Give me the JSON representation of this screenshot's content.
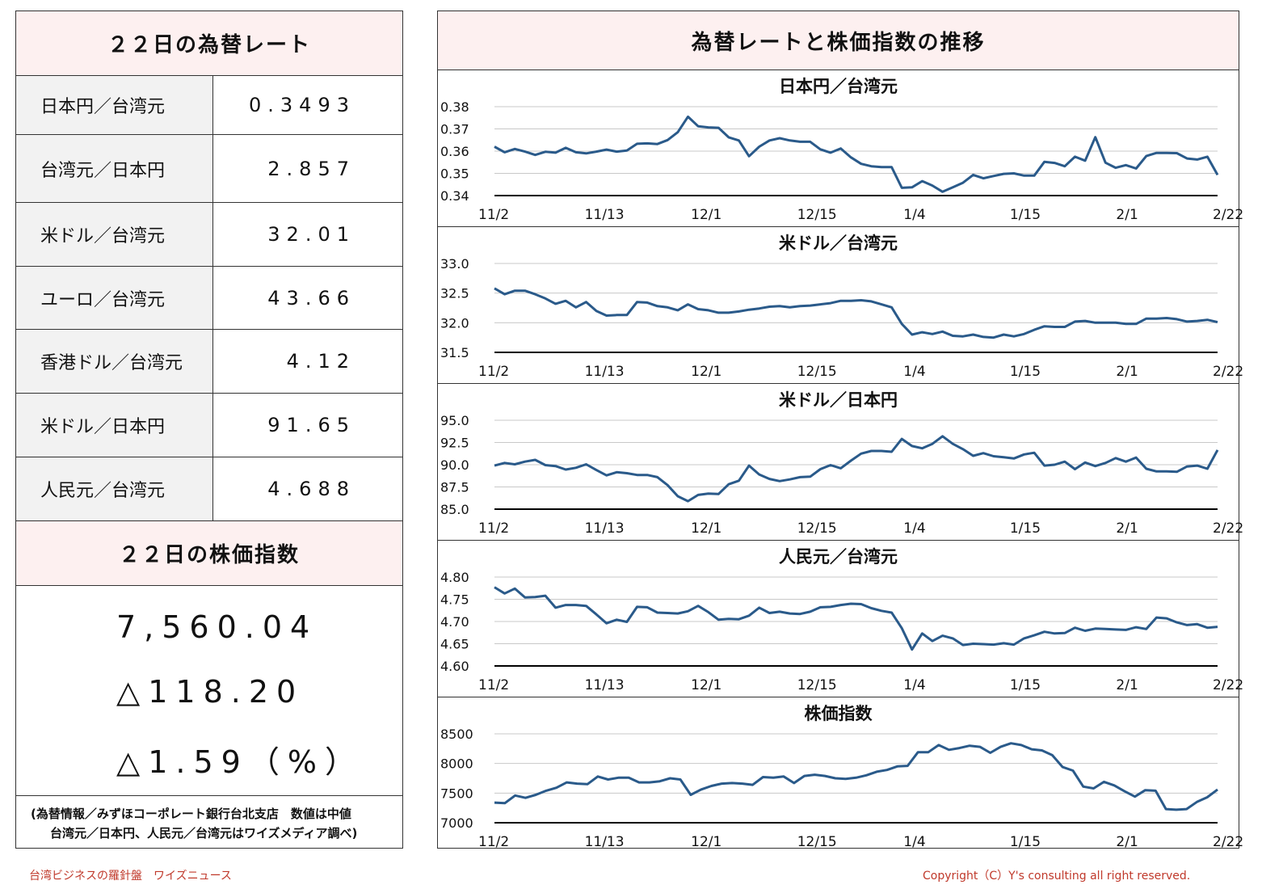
{
  "rates_panel": {
    "title": "２２日の為替レート",
    "rows": [
      {
        "label": "日本円／台湾元",
        "value": "0.3493"
      },
      {
        "label": "台湾元／日本円",
        "value": "2.857"
      },
      {
        "label": "米ドル／台湾元",
        "value": "32.01"
      },
      {
        "label": "ユーロ／台湾元",
        "value": "43.66"
      },
      {
        "label": "香港ドル／台湾元",
        "value": "4.12"
      },
      {
        "label": "米ドル／日本円",
        "value": "91.65"
      },
      {
        "label": "人民元／台湾元",
        "value": "4.688"
      }
    ]
  },
  "stock_panel": {
    "title": "２２日の株価指数",
    "index": "7,560.04",
    "change": "△118.20",
    "change_pct": "△1.59（%）"
  },
  "note": {
    "line1": "(為替情報／みずほコーポレート銀行台北支店　数値は中値",
    "line2": "台湾元／日本円、人民元／台湾元はワイズメディア調べ)"
  },
  "chart_section_title": "為替レートと株価指数の推移",
  "footer": {
    "left": "台湾ビジネスの羅針盤　ワイズニュース",
    "right": "Copyright（C）Y's consulting all right reserved."
  },
  "colors": {
    "line": "#2a5a8a",
    "header_bg": "#fdf0f0",
    "label_bg": "#f2f2f2",
    "footer": "#c0392b"
  },
  "chart_data": [
    {
      "type": "line",
      "title": "日本円／台湾元",
      "x_ticks": [
        "11/2",
        "11/13",
        "12/1",
        "12/15",
        "1/4",
        "1/15",
        "2/1",
        "2/22"
      ],
      "y_ticks": [
        "0.38",
        "0.37",
        "0.36",
        "0.35",
        "0.34"
      ],
      "ylim": [
        0.34,
        0.38
      ],
      "values": [
        0.362,
        0.3595,
        0.361,
        0.3598,
        0.3583,
        0.3597,
        0.3593,
        0.3615,
        0.3595,
        0.359,
        0.3598,
        0.3607,
        0.3598,
        0.3603,
        0.3633,
        0.3635,
        0.3632,
        0.365,
        0.3685,
        0.3755,
        0.3712,
        0.3707,
        0.3705,
        0.3662,
        0.3648,
        0.3577,
        0.362,
        0.3648,
        0.3658,
        0.3648,
        0.3642,
        0.3642,
        0.3608,
        0.3593,
        0.3612,
        0.3572,
        0.3543,
        0.3532,
        0.3528,
        0.3528,
        0.3435,
        0.3437,
        0.3465,
        0.3445,
        0.3417,
        0.3437,
        0.3458,
        0.3493,
        0.3478,
        0.3488,
        0.3498,
        0.35,
        0.349,
        0.349,
        0.3552,
        0.3547,
        0.3532,
        0.3575,
        0.3557,
        0.3663,
        0.3548,
        0.3525,
        0.3537,
        0.3522,
        0.3578,
        0.3592,
        0.3592,
        0.3591,
        0.3567,
        0.3562,
        0.3575,
        0.3493
      ]
    },
    {
      "type": "line",
      "title": "米ドル／台湾元",
      "x_ticks": [
        "11/2",
        "11/13",
        "12/1",
        "12/15",
        "1/4",
        "1/15",
        "2/1",
        "2/22"
      ],
      "y_ticks": [
        "33.0",
        "32.5",
        "32.0",
        "31.5"
      ],
      "ylim": [
        31.5,
        33.0
      ],
      "values": [
        32.58,
        32.48,
        32.54,
        32.54,
        32.48,
        32.41,
        32.32,
        32.37,
        32.26,
        32.35,
        32.2,
        32.12,
        32.13,
        32.13,
        32.35,
        32.34,
        32.28,
        32.26,
        32.21,
        32.31,
        32.23,
        32.21,
        32.17,
        32.17,
        32.19,
        32.22,
        32.24,
        32.27,
        32.28,
        32.26,
        32.28,
        32.29,
        32.31,
        32.33,
        32.37,
        32.37,
        32.38,
        32.36,
        32.31,
        32.26,
        31.98,
        31.8,
        31.84,
        31.81,
        31.85,
        31.78,
        31.77,
        31.8,
        31.76,
        31.75,
        31.8,
        31.77,
        31.81,
        31.88,
        31.94,
        31.93,
        31.93,
        32.02,
        32.03,
        32.0,
        32.0,
        32.0,
        31.98,
        31.98,
        32.07,
        32.07,
        32.08,
        32.06,
        32.02,
        32.03,
        32.05,
        32.01
      ]
    },
    {
      "type": "line",
      "title": "米ドル／日本円",
      "x_ticks": [
        "11/2",
        "11/13",
        "12/1",
        "12/15",
        "1/4",
        "1/15",
        "2/1",
        "2/22"
      ],
      "y_ticks": [
        "95.0",
        "92.5",
        "90.0",
        "87.5",
        "85.0"
      ],
      "ylim": [
        85.0,
        95.0
      ],
      "values": [
        89.9,
        90.2,
        90.05,
        90.35,
        90.55,
        89.95,
        89.85,
        89.45,
        89.65,
        90.05,
        89.4,
        88.8,
        89.15,
        89.05,
        88.85,
        88.85,
        88.6,
        87.7,
        86.45,
        85.9,
        86.6,
        86.75,
        86.7,
        87.8,
        88.2,
        89.9,
        88.9,
        88.4,
        88.15,
        88.35,
        88.6,
        88.65,
        89.5,
        89.95,
        89.6,
        90.45,
        91.25,
        91.55,
        91.55,
        91.45,
        92.9,
        92.1,
        91.85,
        92.35,
        93.2,
        92.35,
        91.75,
        91.0,
        91.3,
        90.95,
        90.85,
        90.7,
        91.15,
        91.35,
        89.9,
        90.0,
        90.35,
        89.5,
        90.25,
        89.85,
        90.2,
        90.75,
        90.35,
        90.8,
        89.55,
        89.25,
        89.25,
        89.2,
        89.8,
        89.9,
        89.55,
        91.65
      ]
    },
    {
      "type": "line",
      "title": "人民元／台湾元",
      "x_ticks": [
        "11/2",
        "11/13",
        "12/1",
        "12/15",
        "1/4",
        "1/15",
        "2/1",
        "2/22"
      ],
      "y_ticks": [
        "4.80",
        "4.75",
        "4.70",
        "4.65",
        "4.60"
      ],
      "ylim": [
        4.6,
        4.8
      ],
      "values": [
        4.777,
        4.763,
        4.774,
        4.754,
        4.755,
        4.758,
        4.731,
        4.737,
        4.737,
        4.735,
        4.716,
        4.696,
        4.704,
        4.699,
        4.733,
        4.732,
        4.72,
        4.719,
        4.718,
        4.723,
        4.735,
        4.721,
        4.704,
        4.706,
        4.705,
        4.713,
        4.731,
        4.719,
        4.722,
        4.718,
        4.717,
        4.722,
        4.732,
        4.733,
        4.737,
        4.74,
        4.739,
        4.73,
        4.724,
        4.72,
        4.685,
        4.637,
        4.673,
        4.656,
        4.668,
        4.662,
        4.647,
        4.65,
        4.649,
        4.648,
        4.651,
        4.648,
        4.662,
        4.669,
        4.677,
        4.673,
        4.674,
        4.686,
        4.679,
        4.684,
        4.683,
        4.682,
        4.681,
        4.687,
        4.683,
        4.709,
        4.707,
        4.698,
        4.692,
        4.694,
        4.686,
        4.688
      ]
    },
    {
      "type": "line",
      "title": "株価指数",
      "x_ticks": [
        "11/2",
        "11/13",
        "12/1",
        "12/15",
        "1/4",
        "1/15",
        "2/1",
        "2/22"
      ],
      "y_ticks": [
        "8500",
        "8000",
        "7500",
        "7000"
      ],
      "ylim": [
        7000,
        8500
      ],
      "values": [
        7340,
        7330,
        7460,
        7420,
        7470,
        7540,
        7590,
        7680,
        7660,
        7650,
        7780,
        7730,
        7760,
        7760,
        7680,
        7680,
        7700,
        7750,
        7730,
        7470,
        7560,
        7620,
        7660,
        7670,
        7660,
        7640,
        7770,
        7760,
        7780,
        7670,
        7790,
        7810,
        7790,
        7750,
        7740,
        7760,
        7800,
        7860,
        7890,
        7950,
        7960,
        8190,
        8190,
        8310,
        8230,
        8260,
        8300,
        8280,
        8180,
        8280,
        8340,
        8310,
        8240,
        8220,
        8140,
        7940,
        7880,
        7610,
        7580,
        7690,
        7630,
        7530,
        7440,
        7550,
        7540,
        7230,
        7220,
        7230,
        7350,
        7430,
        7560
      ]
    }
  ]
}
